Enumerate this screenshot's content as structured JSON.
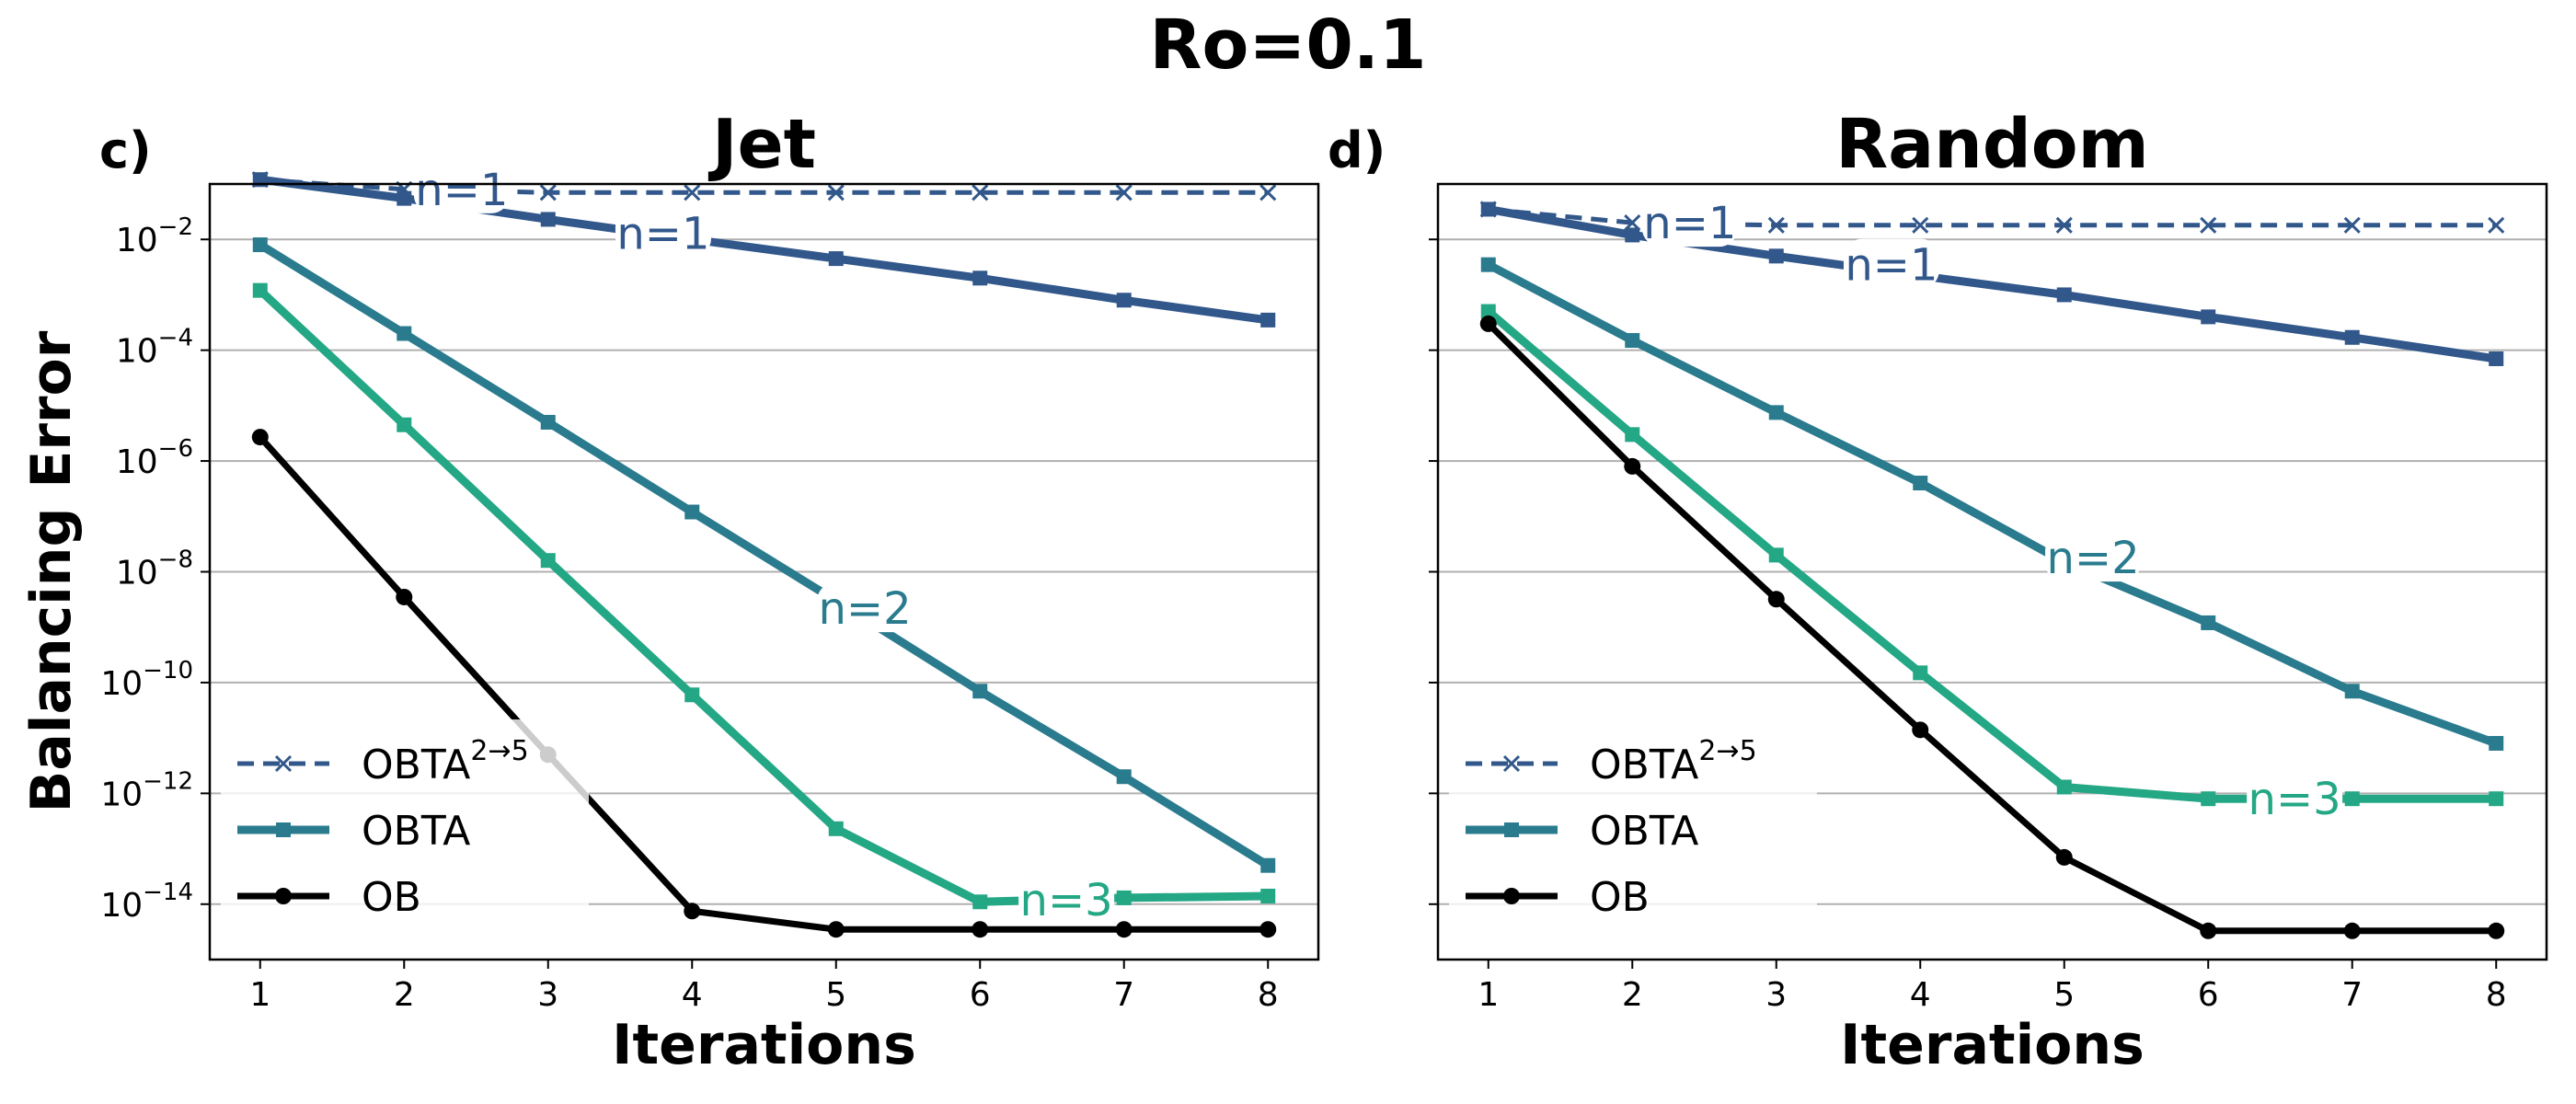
{
  "figure_title": "Ro=0.1",
  "colors": {
    "obta25": "#31578b",
    "obta": "#2a7b8e",
    "obtan3": "#23a784",
    "ob": "#000000",
    "grid": "#b0b0b0"
  },
  "chart_data": [
    {
      "type": "line",
      "panel_label": "c)",
      "title": "Jet",
      "xlabel": "Iterations",
      "ylabel": "Balancing Error",
      "yscale": "log",
      "ylim": [
        1e-15,
        0.1
      ],
      "x": [
        1,
        2,
        3,
        4,
        5,
        6,
        7,
        8
      ],
      "x_ticks": [
        "1",
        "2",
        "3",
        "4",
        "5",
        "6",
        "7",
        "8"
      ],
      "y_ticks": [
        {
          "base": "10",
          "exp": "−2",
          "value": 0.01
        },
        {
          "base": "10",
          "exp": "−4",
          "value": 0.0001
        },
        {
          "base": "10",
          "exp": "−6",
          "value": 1e-06
        },
        {
          "base": "10",
          "exp": "−8",
          "value": 1e-08
        },
        {
          "base": "10",
          "exp": "−10",
          "value": 1e-10
        },
        {
          "base": "10",
          "exp": "−12",
          "value": 1e-12
        },
        {
          "base": "10",
          "exp": "−14",
          "value": 1e-14
        }
      ],
      "grid": "horizontal",
      "series": [
        {
          "values": [
            0.12,
            0.08,
            0.07,
            0.07,
            0.07,
            0.07,
            0.07,
            0.07
          ],
          "color_key": "obta25",
          "style": "dashed",
          "marker": "x",
          "width": 5
        },
        {
          "values": [
            0.12,
            0.055,
            0.023,
            0.01,
            0.0045,
            0.002,
            0.0008,
            0.00035
          ],
          "color_key": "obta25",
          "style": "solid",
          "marker": "s",
          "width": 9
        },
        {
          "values": [
            0.008,
            0.0002,
            5e-06,
            1.2e-07,
            3e-09,
            7e-11,
            2e-12,
            5e-14
          ],
          "color_key": "obta",
          "style": "solid",
          "marker": "s",
          "width": 9
        },
        {
          "values": [
            0.0012,
            4.5e-06,
            1.6e-08,
            6e-11,
            2.3e-13,
            1.1e-14,
            1.3e-14,
            1.4e-14
          ],
          "color_key": "obtan3",
          "style": "solid",
          "marker": "s",
          "width": 9
        },
        {
          "values": [
            2.7e-06,
            3.5e-09,
            5e-12,
            7.5e-15,
            3.5e-15,
            3.5e-15,
            3.5e-15,
            3.5e-15
          ],
          "color_key": "ob",
          "style": "solid",
          "marker": "o",
          "width": 7
        }
      ],
      "inline_labels": [
        {
          "text": "n=1",
          "x": 2.4,
          "y": 0.08,
          "color_key": "obta25"
        },
        {
          "text": "n=1",
          "x": 3.8,
          "y": 0.013,
          "color_key": "obta25"
        },
        {
          "text": "n=2",
          "x": 5.2,
          "y": 2.2e-09,
          "color_key": "obta"
        },
        {
          "text": "n=3",
          "x": 6.6,
          "y": 1.2e-14,
          "color_key": "obtan3"
        }
      ],
      "legend": {
        "position": "lower-left",
        "entries": [
          {
            "label": "OBTA",
            "sup": "2→5",
            "color_key": "obta25",
            "style": "dashed",
            "marker": "x"
          },
          {
            "label": "OBTA",
            "sup": "",
            "color_key": "obta",
            "style": "solid",
            "marker": "s"
          },
          {
            "label": "OB",
            "sup": "",
            "color_key": "ob",
            "style": "solid",
            "marker": "o"
          }
        ]
      }
    },
    {
      "type": "line",
      "panel_label": "d)",
      "title": "Random",
      "xlabel": "Iterations",
      "ylabel": "",
      "yscale": "log",
      "ylim": [
        1e-15,
        0.1
      ],
      "x": [
        1,
        2,
        3,
        4,
        5,
        6,
        7,
        8
      ],
      "x_ticks": [
        "1",
        "2",
        "3",
        "4",
        "5",
        "6",
        "7",
        "8"
      ],
      "y_ticks": [],
      "grid": "horizontal",
      "series": [
        {
          "values": [
            0.035,
            0.02,
            0.018,
            0.018,
            0.018,
            0.018,
            0.018,
            0.018
          ],
          "color_key": "obta25",
          "style": "dashed",
          "marker": "x",
          "width": 5
        },
        {
          "values": [
            0.035,
            0.012,
            0.005,
            0.0022,
            0.001,
            0.0004,
            0.00017,
            7e-05
          ],
          "color_key": "obta25",
          "style": "solid",
          "marker": "s",
          "width": 9
        },
        {
          "values": [
            0.0035,
            0.00015,
            7.5e-06,
            4e-07,
            1.5e-08,
            1.2e-09,
            7e-11,
            8e-12
          ],
          "color_key": "obta",
          "style": "solid",
          "marker": "s",
          "width": 9
        },
        {
          "values": [
            0.0005,
            3e-06,
            2e-08,
            1.5e-10,
            1.3e-12,
            8e-13,
            8e-13,
            8e-13
          ],
          "color_key": "obtan3",
          "style": "solid",
          "marker": "s",
          "width": 9
        },
        {
          "values": [
            0.0003,
            8e-07,
            3.2e-09,
            1.4e-11,
            7e-14,
            3.3e-15,
            3.3e-15,
            3.3e-15
          ],
          "color_key": "ob",
          "style": "solid",
          "marker": "o",
          "width": 7
        }
      ],
      "inline_labels": [
        {
          "text": "n=1",
          "x": 2.4,
          "y": 0.02,
          "color_key": "obta25"
        },
        {
          "text": "n=1",
          "x": 3.8,
          "y": 0.0035,
          "color_key": "obta25"
        },
        {
          "text": "n=2",
          "x": 5.2,
          "y": 1.8e-08,
          "color_key": "obta"
        },
        {
          "text": "n=3",
          "x": 6.6,
          "y": 8e-13,
          "color_key": "obtan3"
        }
      ],
      "legend": {
        "position": "lower-left",
        "entries": [
          {
            "label": "OBTA",
            "sup": "2→5",
            "color_key": "obta25",
            "style": "dashed",
            "marker": "x"
          },
          {
            "label": "OBTA",
            "sup": "",
            "color_key": "obta",
            "style": "solid",
            "marker": "s"
          },
          {
            "label": "OB",
            "sup": "",
            "color_key": "ob",
            "style": "solid",
            "marker": "o"
          }
        ]
      }
    }
  ]
}
